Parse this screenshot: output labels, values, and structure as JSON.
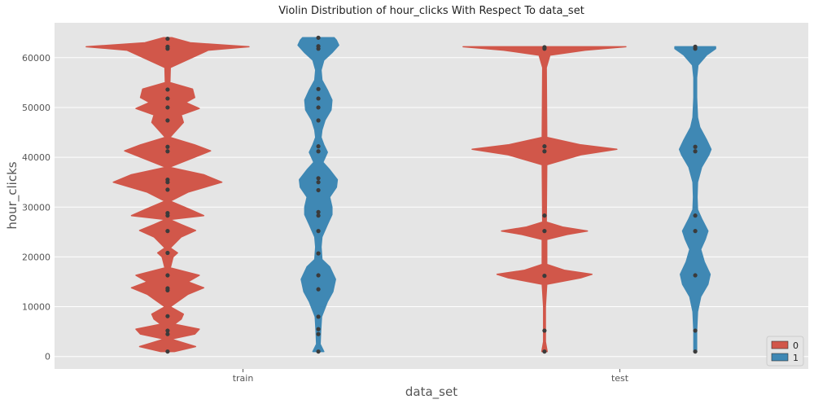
{
  "chart_data": {
    "type": "violin",
    "title": "Violin Distribution of hour_clicks With Respect To data_set",
    "xlabel": "data_set",
    "ylabel": "hour_clicks",
    "categories": [
      "train",
      "test"
    ],
    "ylim": [
      -2500,
      67000
    ],
    "yticks": [
      0,
      10000,
      20000,
      30000,
      40000,
      50000,
      60000
    ],
    "ytick_labels": [
      "0",
      "10000",
      "20000",
      "30000",
      "40000",
      "50000",
      "60000"
    ],
    "grid": true,
    "legend": {
      "placement": "lower-right",
      "entries": [
        "0",
        "1"
      ]
    },
    "colors": {
      "0": "#d1574a",
      "1": "#3f88b4",
      "background": "#e5e5e5",
      "points": "#3b3b3b"
    },
    "series": [
      {
        "name": "0",
        "violins": [
          {
            "category": "train",
            "range": [
              1000,
              64000
            ],
            "profile": [
              [
                1000,
                0.15
              ],
              [
                2000,
                0.62
              ],
              [
                3500,
                0.08
              ],
              [
                4500,
                0.6
              ],
              [
                5500,
                0.7
              ],
              [
                6500,
                0.15
              ],
              [
                7500,
                0.3
              ],
              [
                8500,
                0.35
              ],
              [
                10000,
                0.06
              ],
              [
                12500,
                0.45
              ],
              [
                13800,
                0.8
              ],
              [
                15000,
                0.45
              ],
              [
                16300,
                0.7
              ],
              [
                17800,
                0.06
              ],
              [
                20000,
                0.12
              ],
              [
                20800,
                0.22
              ],
              [
                21800,
                0.06
              ],
              [
                24000,
                0.3
              ],
              [
                25300,
                0.62
              ],
              [
                26500,
                0.3
              ],
              [
                27500,
                0.05
              ],
              [
                28300,
                0.8
              ],
              [
                29500,
                0.5
              ],
              [
                31200,
                0.06
              ],
              [
                33000,
                0.45
              ],
              [
                33800,
                0.75
              ],
              [
                35000,
                1.2
              ],
              [
                36500,
                0.8
              ],
              [
                38000,
                0.04
              ],
              [
                41300,
                0.95
              ],
              [
                42500,
                0.6
              ],
              [
                44000,
                0.05
              ],
              [
                47000,
                0.35
              ],
              [
                48500,
                0.3
              ],
              [
                49800,
                0.7
              ],
              [
                51000,
                0.4
              ],
              [
                52000,
                0.6
              ],
              [
                53700,
                0.55
              ],
              [
                55000,
                0.05
              ],
              [
                58000,
                0.06
              ],
              [
                61500,
                0.9
              ],
              [
                62200,
                1.8
              ],
              [
                63000,
                0.5
              ],
              [
                64000,
                0.1
              ]
            ],
            "points": [
              1000,
              4500,
              5200,
              8100,
              13300,
              13700,
              16300,
              20800,
              25200,
              28300,
              28800,
              33500,
              35000,
              35500,
              41200,
              42100,
              47400,
              50000,
              51800,
              53600,
              61800,
              62200,
              63800
            ]
          },
          {
            "category": "test",
            "range": [
              1000,
              62200
            ],
            "profile": [
              [
                1000,
                0.06
              ],
              [
                3000,
                0.02
              ],
              [
                10000,
                0.02
              ],
              [
                14500,
                0.05
              ],
              [
                15800,
                0.8
              ],
              [
                16500,
                1.05
              ],
              [
                17300,
                0.45
              ],
              [
                18500,
                0.05
              ],
              [
                23500,
                0.05
              ],
              [
                24500,
                0.5
              ],
              [
                25200,
                0.95
              ],
              [
                26000,
                0.4
              ],
              [
                27000,
                0.04
              ],
              [
                38500,
                0.05
              ],
              [
                40500,
                0.8
              ],
              [
                41600,
                1.6
              ],
              [
                42500,
                0.8
              ],
              [
                44000,
                0.05
              ],
              [
                58000,
                0.04
              ],
              [
                60500,
                0.12
              ],
              [
                61500,
                0.9
              ],
              [
                62200,
                1.8
              ]
            ],
            "points": [
              1000,
              5200,
              16200,
              25200,
              28300,
              41200,
              42200,
              61800,
              62100
            ]
          }
        ]
      },
      {
        "name": "1",
        "violins": [
          {
            "category": "train",
            "range": [
              1000,
              64000
            ],
            "profile": [
              [
                1000,
                0.12
              ],
              [
                2500,
                0.04
              ],
              [
                5000,
                0.05
              ],
              [
                8000,
                0.07
              ],
              [
                11000,
                0.2
              ],
              [
                13000,
                0.32
              ],
              [
                15500,
                0.38
              ],
              [
                18000,
                0.25
              ],
              [
                19500,
                0.08
              ],
              [
                22000,
                0.06
              ],
              [
                24000,
                0.08
              ],
              [
                26500,
                0.2
              ],
              [
                28500,
                0.3
              ],
              [
                30000,
                0.3
              ],
              [
                32000,
                0.25
              ],
              [
                34000,
                0.4
              ],
              [
                35500,
                0.42
              ],
              [
                37500,
                0.25
              ],
              [
                39000,
                0.1
              ],
              [
                41000,
                0.2
              ],
              [
                42500,
                0.12
              ],
              [
                44000,
                0.06
              ],
              [
                45500,
                0.08
              ],
              [
                47500,
                0.15
              ],
              [
                49500,
                0.28
              ],
              [
                51500,
                0.3
              ],
              [
                53500,
                0.2
              ],
              [
                55500,
                0.08
              ],
              [
                57500,
                0.06
              ],
              [
                59500,
                0.12
              ],
              [
                61000,
                0.3
              ],
              [
                62500,
                0.45
              ],
              [
                63500,
                0.4
              ],
              [
                64000,
                0.35
              ]
            ],
            "points": [
              1000,
              4500,
              5500,
              8000,
              13500,
              16300,
              20700,
              25200,
              28300,
              29000,
              33400,
              35000,
              35800,
              41200,
              42200,
              47400,
              50000,
              51800,
              53700,
              61800,
              62300,
              64000
            ]
          },
          {
            "category": "test",
            "range": [
              1000,
              62200
            ],
            "profile": [
              [
                1000,
                0.03
              ],
              [
                5000,
                0.03
              ],
              [
                9000,
                0.05
              ],
              [
                12000,
                0.12
              ],
              [
                14500,
                0.28
              ],
              [
                16500,
                0.33
              ],
              [
                19000,
                0.2
              ],
              [
                21500,
                0.12
              ],
              [
                23500,
                0.22
              ],
              [
                25200,
                0.28
              ],
              [
                27500,
                0.15
              ],
              [
                29500,
                0.05
              ],
              [
                32000,
                0.04
              ],
              [
                35000,
                0.05
              ],
              [
                38000,
                0.14
              ],
              [
                40500,
                0.3
              ],
              [
                41600,
                0.35
              ],
              [
                43500,
                0.25
              ],
              [
                46000,
                0.1
              ],
              [
                48000,
                0.05
              ],
              [
                52000,
                0.03
              ],
              [
                56000,
                0.03
              ],
              [
                58500,
                0.06
              ],
              [
                60500,
                0.25
              ],
              [
                61800,
                0.45
              ],
              [
                62200,
                0.45
              ]
            ],
            "points": [
              1000,
              5200,
              16300,
              25200,
              28300,
              41200,
              42100,
              61800,
              62200
            ]
          }
        ]
      }
    ]
  }
}
